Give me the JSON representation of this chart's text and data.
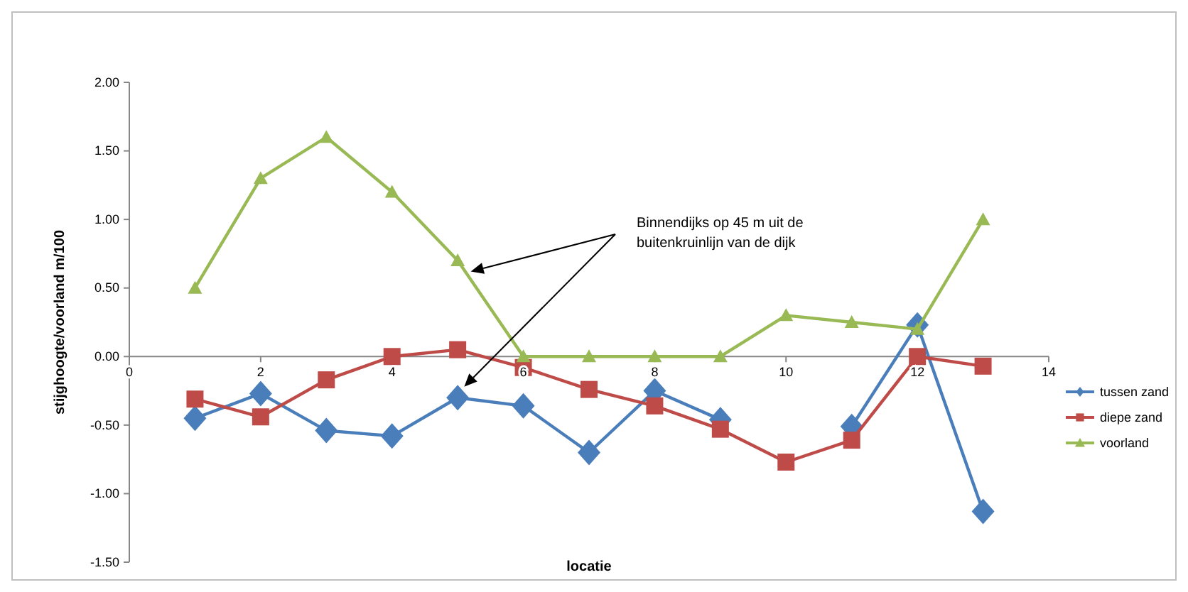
{
  "chart_data": {
    "type": "line",
    "xlabel": "locatie",
    "ylabel": "stijghoogte/voorland m/100",
    "x": [
      1,
      2,
      3,
      4,
      5,
      6,
      7,
      8,
      9,
      10,
      11,
      12,
      13
    ],
    "xlim": [
      0,
      14
    ],
    "xticks": [
      0,
      2,
      4,
      6,
      8,
      10,
      12,
      14
    ],
    "ylim": [
      -1.5,
      2
    ],
    "yticks": [
      {
        "value": -1.5,
        "label": "-1.50"
      },
      {
        "value": -1,
        "label": "-1.00"
      },
      {
        "value": -0.5,
        "label": "-0.50"
      },
      {
        "value": 0,
        "label": "0.00"
      },
      {
        "value": 0.5,
        "label": "0.50"
      },
      {
        "value": 1,
        "label": "1.00"
      },
      {
        "value": 1.5,
        "label": "1.50"
      },
      {
        "value": 2,
        "label": "2.00"
      }
    ],
    "series": [
      {
        "name": "tussen zand",
        "color": "#4a7ebb",
        "marker": "diamond",
        "values": [
          -0.45,
          -0.27,
          -0.54,
          -0.58,
          -0.3,
          -0.36,
          -0.7,
          -0.25,
          -0.46,
          null,
          -0.51,
          0.23,
          -1.13
        ]
      },
      {
        "name": "diepe zand",
        "color": "#be4b48",
        "marker": "square",
        "values": [
          -0.31,
          -0.44,
          -0.17,
          0,
          0.05,
          -0.08,
          -0.24,
          -0.36,
          -0.53,
          -0.77,
          -0.61,
          0,
          -0.07
        ]
      },
      {
        "name": "voorland",
        "color": "#98b954",
        "marker": "triangle",
        "values": [
          0.5,
          1.3,
          1.6,
          1.2,
          0.7,
          0,
          0,
          0,
          0,
          0.3,
          0.25,
          0.2,
          1
        ]
      }
    ],
    "annotations": [
      "Binnendijks op 45 m uit de buitenkruinlijn van de dijk"
    ],
    "grid": false,
    "legend": "right"
  }
}
